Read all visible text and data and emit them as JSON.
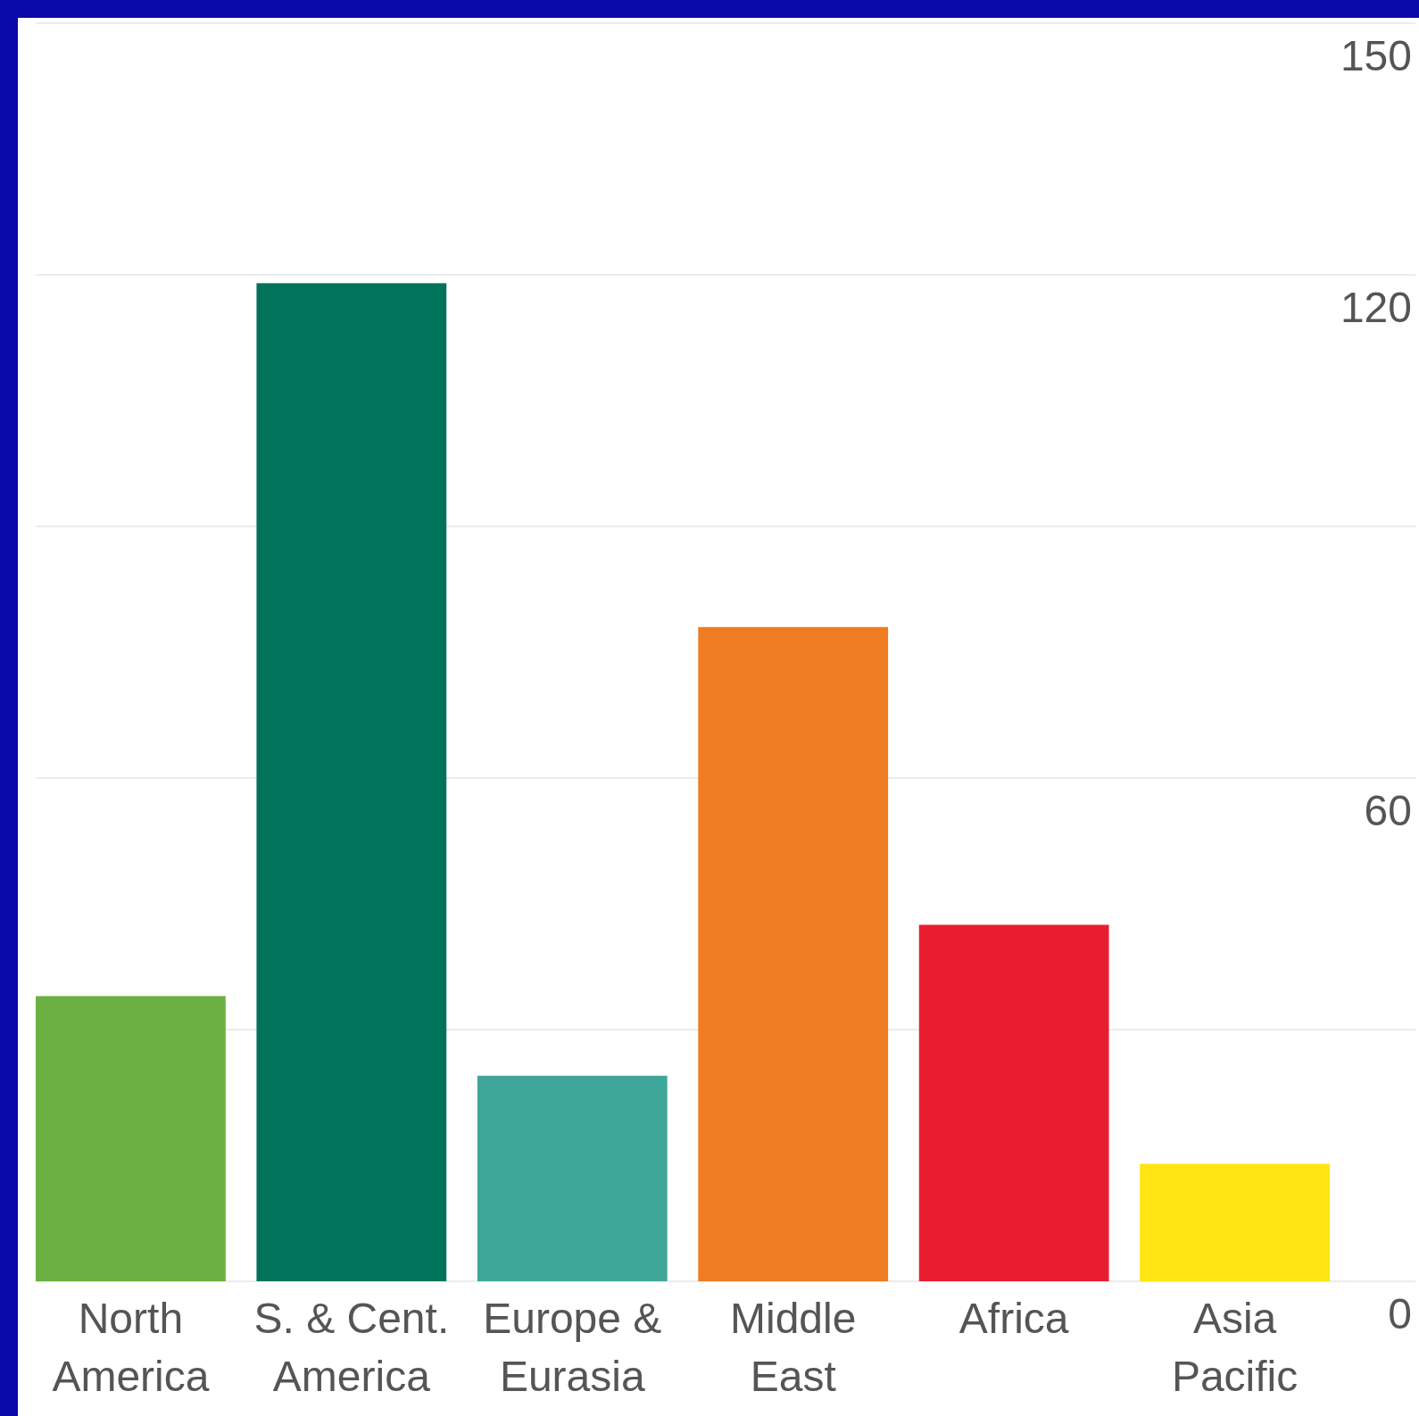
{
  "chart_data": {
    "type": "bar",
    "categories": [
      "North America",
      "S. & Cent. America",
      "Europe & Eurasia",
      "Middle East",
      "Africa",
      "Asia Pacific"
    ],
    "values": [
      34,
      119,
      24.5,
      78,
      42.5,
      14
    ],
    "colors": [
      "#6ab043",
      "#00735a",
      "#3ea699",
      "#ef7b22",
      "#e81e2f",
      "#ffe512"
    ],
    "ylim": [
      0,
      150
    ],
    "yticks": [
      0,
      {
        "value": 30,
        "label": null
      },
      60,
      {
        "value": 90,
        "label": null
      },
      120,
      150
    ],
    "grid": "y"
  }
}
